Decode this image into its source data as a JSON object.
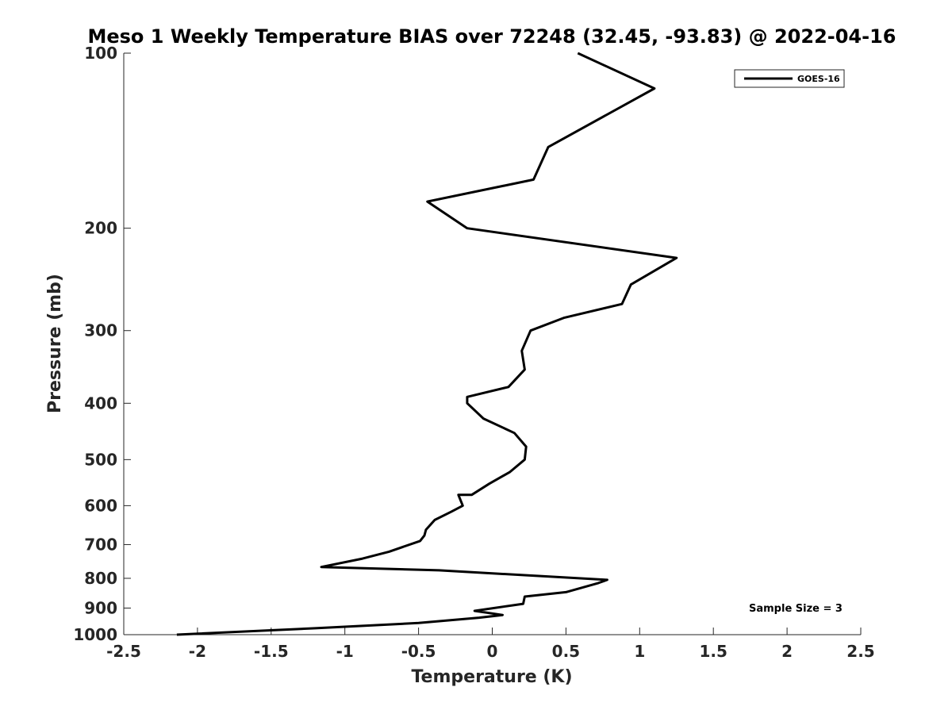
{
  "chart_data": {
    "type": "line",
    "title": "Meso 1 Weekly Temperature BIAS over 72248 (32.45, -93.83) @ 2022-04-16",
    "xlabel": "Temperature (K)",
    "ylabel": "Pressure (mb)",
    "xlim": [
      -2.5,
      2.5
    ],
    "ylim": [
      100,
      1000
    ],
    "y_scale": "log",
    "y_reversed": true,
    "x_ticks": [
      "-2.5",
      "-2",
      "-1.5",
      "-1",
      "-0.5",
      "0",
      "0.5",
      "1",
      "1.5",
      "2",
      "2.5"
    ],
    "y_ticks": [
      "100",
      "200",
      "300",
      "400",
      "500",
      "600",
      "700",
      "800",
      "900",
      "1000"
    ],
    "grid": false,
    "legend_position": "top-right",
    "annotation": "Sample Size = 3",
    "series": [
      {
        "name": "GOES-16",
        "color": "#000000",
        "temperature": [
          0.58,
          1.1,
          0.38,
          0.28,
          -0.44,
          -0.17,
          1.25,
          0.94,
          0.88,
          0.49,
          0.26,
          0.2,
          0.22,
          0.11,
          -0.17,
          -0.17,
          -0.06,
          0.15,
          0.23,
          0.22,
          0.12,
          -0.02,
          -0.14,
          -0.23,
          -0.2,
          -0.28,
          -0.39,
          -0.45,
          -0.46,
          -0.49,
          -0.7,
          -0.88,
          -1.16,
          -0.36,
          0.78,
          0.72,
          0.5,
          0.22,
          0.21,
          -0.12,
          0.07,
          -0.09,
          -0.5,
          -1.2,
          -2.14
        ],
        "pressure": [
          100,
          115,
          145,
          165,
          180,
          200,
          225,
          250,
          270,
          285,
          300,
          325,
          350,
          375,
          390,
          400,
          425,
          450,
          475,
          500,
          525,
          550,
          575,
          575,
          600,
          615,
          635,
          660,
          675,
          690,
          720,
          740,
          765,
          775,
          805,
          815,
          845,
          860,
          885,
          910,
          925,
          935,
          955,
          975,
          1000
        ]
      }
    ]
  }
}
